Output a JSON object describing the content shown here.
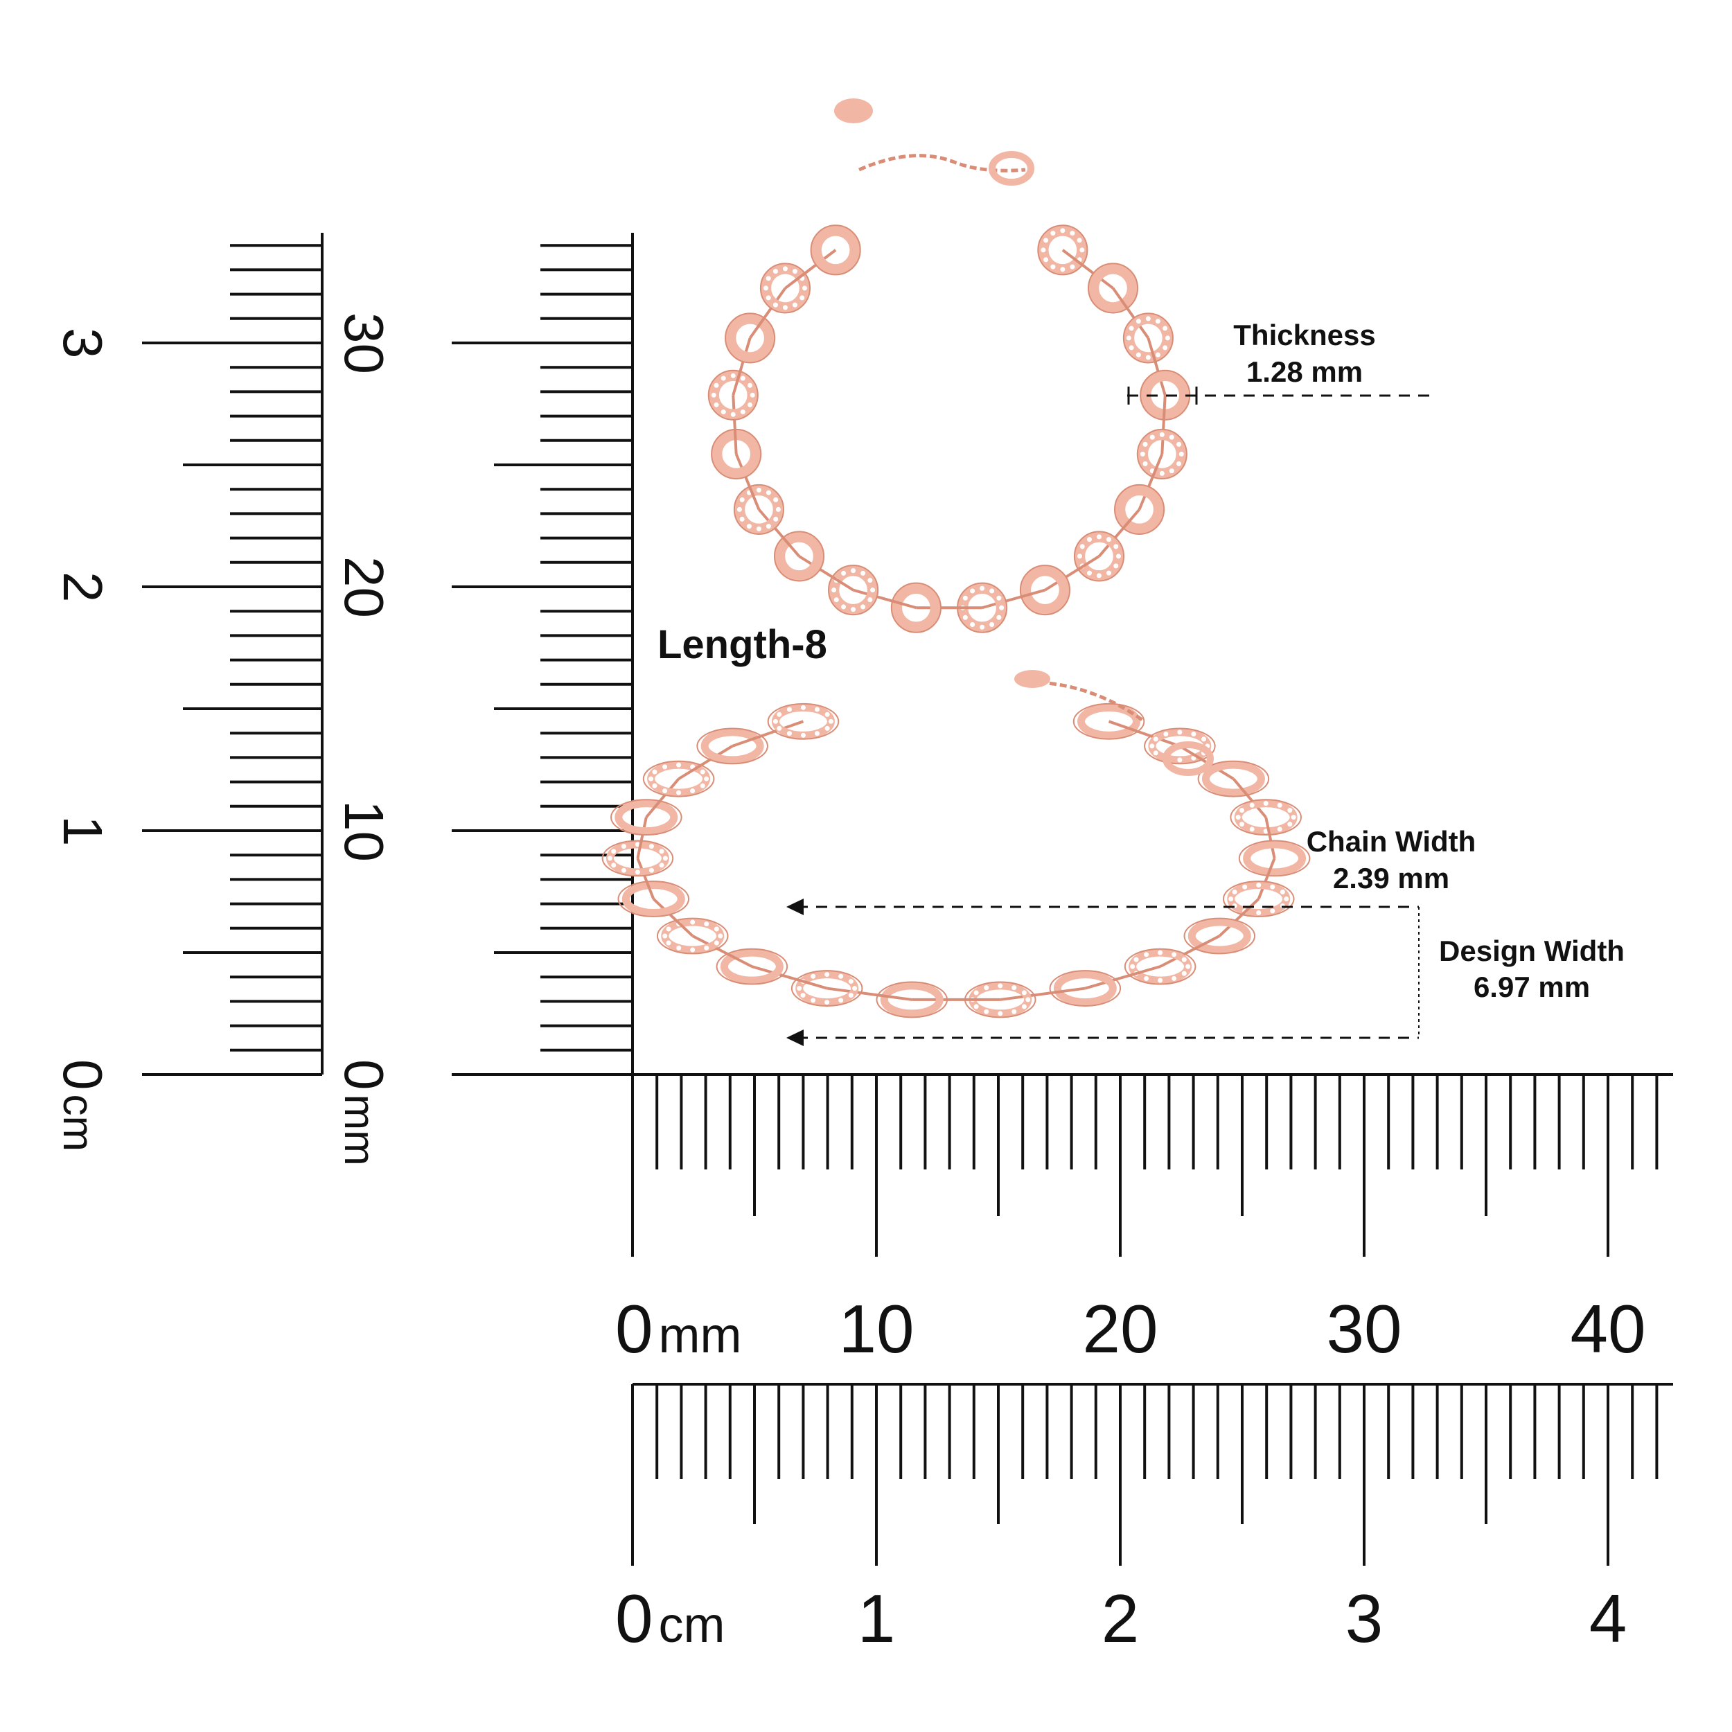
{
  "title": "Length-8",
  "annotations": {
    "thickness": {
      "label": "Thickness",
      "value": "1.28 mm"
    },
    "chain_width": {
      "label": "Chain Width",
      "value": "2.39 mm"
    },
    "design_width": {
      "label": "Design Width",
      "value": "6.97 mm"
    }
  },
  "rulers": {
    "vertical_cm": {
      "labels": [
        "0",
        "1",
        "2",
        "3"
      ],
      "unit": "cm"
    },
    "vertical_mm": {
      "labels": [
        "0",
        "10",
        "20",
        "30"
      ],
      "unit": "mm"
    },
    "horizontal_mm": {
      "labels": [
        "0",
        "10",
        "20",
        "30",
        "40"
      ],
      "unit": "mm"
    },
    "horizontal_cm": {
      "labels": [
        "0",
        "1",
        "2",
        "3",
        "4"
      ],
      "unit": "cm"
    }
  },
  "colors": {
    "metal": "#f2b7a4",
    "metal_dark": "#d98d76",
    "ink": "#111111"
  }
}
